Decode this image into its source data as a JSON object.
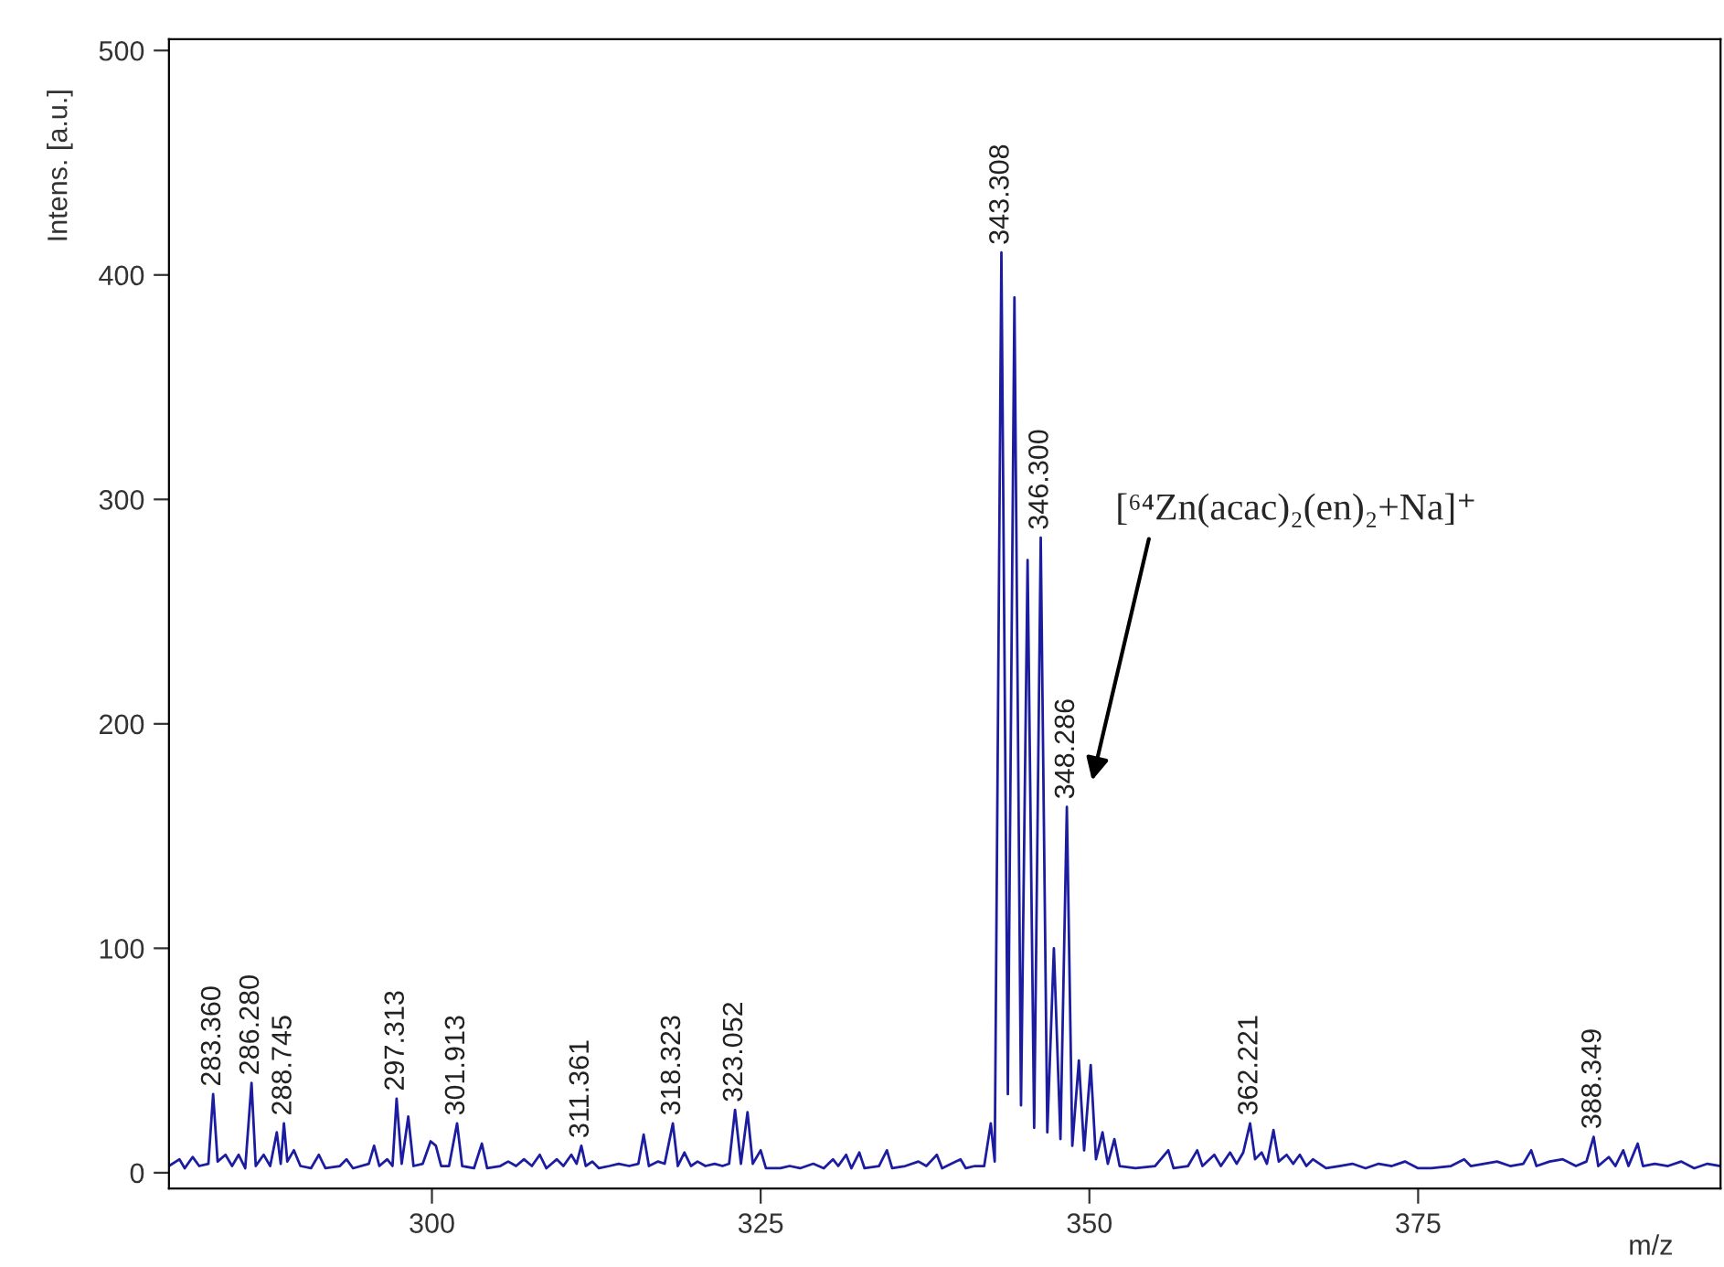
{
  "chart_data": {
    "type": "line",
    "xlabel": "m/z",
    "ylabel": "Intens. [a.u.]",
    "xlim": [
      280,
      398
    ],
    "xticks": [
      300,
      325,
      350,
      375
    ],
    "ylim": [
      -7,
      505
    ],
    "yticks": [
      0,
      100,
      200,
      300,
      400,
      500
    ],
    "grid": false,
    "legend": false,
    "series": [
      {
        "color": "#1c1ca0",
        "x": [
          280.0,
          280.8,
          281.2,
          281.8,
          282.3,
          283.0,
          283.36,
          283.7,
          284.3,
          284.8,
          285.3,
          285.8,
          286.28,
          286.6,
          287.2,
          287.7,
          288.2,
          288.5,
          288.745,
          289.0,
          289.5,
          290.0,
          290.8,
          291.4,
          291.9,
          293.0,
          293.5,
          294.0,
          295.2,
          295.6,
          296.0,
          296.6,
          297.0,
          297.313,
          297.7,
          298.2,
          298.6,
          299.3,
          299.9,
          300.3,
          300.7,
          301.3,
          301.913,
          302.3,
          303.2,
          303.8,
          304.2,
          305.2,
          305.8,
          306.4,
          307.0,
          307.6,
          308.2,
          308.7,
          309.5,
          310.0,
          310.6,
          311.0,
          311.361,
          311.7,
          312.2,
          312.7,
          313.5,
          314.2,
          315.0,
          315.7,
          316.1,
          316.5,
          317.2,
          317.7,
          318.323,
          318.7,
          319.2,
          319.7,
          320.2,
          320.8,
          321.5,
          322.1,
          322.6,
          323.052,
          323.5,
          324.0,
          324.4,
          325.0,
          325.4,
          326.5,
          327.2,
          328.0,
          329.0,
          329.8,
          330.5,
          330.9,
          331.5,
          331.9,
          332.5,
          332.9,
          334.0,
          334.6,
          335.0,
          336.0,
          337.0,
          337.6,
          338.4,
          338.8,
          339.5,
          340.2,
          340.6,
          341.3,
          342.0,
          342.5,
          342.8,
          343.308,
          343.8,
          344.3,
          344.8,
          345.3,
          345.8,
          346.3,
          346.8,
          347.3,
          347.8,
          348.286,
          348.7,
          349.2,
          349.6,
          350.1,
          350.5,
          351.0,
          351.4,
          351.9,
          352.3,
          353.5,
          355.0,
          356.0,
          356.4,
          357.5,
          358.2,
          358.6,
          359.5,
          360.0,
          360.7,
          361.2,
          361.7,
          362.221,
          362.6,
          363.1,
          363.5,
          364.0,
          364.4,
          365.0,
          365.5,
          366.0,
          366.5,
          367.0,
          368.0,
          369.0,
          370.0,
          371.0,
          372.0,
          373.0,
          374.0,
          375.0,
          376.0,
          377.5,
          378.5,
          379.0,
          380.0,
          381.0,
          382.0,
          383.0,
          383.6,
          384.0,
          385.0,
          386.0,
          387.0,
          387.8,
          388.349,
          388.7,
          389.5,
          390.0,
          390.6,
          391.0,
          391.7,
          392.1,
          393.0,
          394.0,
          395.0,
          396.0,
          397.0,
          398.0
        ],
        "values": [
          3,
          6,
          2,
          7,
          3,
          4,
          35,
          5,
          8,
          3,
          8,
          2,
          40,
          3,
          8,
          3,
          18,
          4,
          22,
          5,
          10,
          3,
          2,
          8,
          2,
          3,
          6,
          2,
          4,
          12,
          3,
          6,
          3,
          33,
          4,
          25,
          3,
          4,
          14,
          12,
          3,
          3,
          22,
          3,
          2,
          13,
          2,
          3,
          5,
          3,
          6,
          3,
          8,
          2,
          6,
          3,
          8,
          4,
          12,
          3,
          5,
          2,
          3,
          4,
          3,
          4,
          17,
          3,
          5,
          4,
          22,
          3,
          9,
          3,
          5,
          3,
          4,
          3,
          4,
          28,
          4,
          27,
          4,
          10,
          2,
          2,
          3,
          2,
          4,
          2,
          6,
          3,
          8,
          2,
          9,
          2,
          3,
          10,
          2,
          3,
          5,
          3,
          8,
          2,
          4,
          6,
          2,
          3,
          3,
          22,
          5,
          410,
          35,
          390,
          30,
          273,
          20,
          283,
          18,
          100,
          15,
          163,
          12,
          50,
          10,
          48,
          6,
          18,
          4,
          15,
          3,
          2,
          3,
          10,
          2,
          3,
          10,
          3,
          8,
          3,
          9,
          4,
          9,
          22,
          6,
          9,
          4,
          19,
          5,
          8,
          4,
          8,
          3,
          6,
          2,
          3,
          4,
          2,
          4,
          3,
          5,
          2,
          2,
          3,
          6,
          3,
          4,
          5,
          3,
          4,
          10,
          3,
          5,
          6,
          3,
          5,
          16,
          3,
          7,
          3,
          10,
          3,
          13,
          3,
          4,
          3,
          5,
          2,
          4,
          3
        ]
      }
    ],
    "annotations": [
      {
        "text": "283.360",
        "x": 283.36,
        "y": 35
      },
      {
        "text": "286.280",
        "x": 286.28,
        "y": 40
      },
      {
        "text": "288.745",
        "x": 288.745,
        "y": 22
      },
      {
        "text": "297.313",
        "x": 297.313,
        "y": 33
      },
      {
        "text": "301.913",
        "x": 301.913,
        "y": 22
      },
      {
        "text": "311.361",
        "x": 311.361,
        "y": 12
      },
      {
        "text": "318.323",
        "x": 318.323,
        "y": 22
      },
      {
        "text": "323.052",
        "x": 323.052,
        "y": 28
      },
      {
        "text": "343.308",
        "x": 343.308,
        "y": 410
      },
      {
        "text": "346.300",
        "x": 346.3,
        "y": 283
      },
      {
        "text": "348.286",
        "x": 348.286,
        "y": 163
      },
      {
        "text": "362.221",
        "x": 362.221,
        "y": 22
      },
      {
        "text": "388.349",
        "x": 388.349,
        "y": 16
      },
      "[⁶⁴Zn(acac)₂(en)₂+Na]⁺"
    ]
  }
}
